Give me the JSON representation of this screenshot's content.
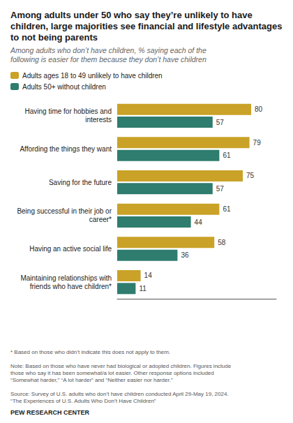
{
  "chart_data": {
    "type": "bar",
    "orientation": "horizontal",
    "title": "Among adults under 50 who say they’re unlikely to have children, large majorities see financial and lifestyle advantages to not being parents",
    "subtitle": "Among adults who don’t have children, % saying each of the following is easier for them because they don’t have children",
    "categories": [
      "Having time for hobbies and\ninterests",
      "Affording the things they want",
      "Saving for the future",
      "Being successful in their job or\ncareer*",
      "Having an active social life",
      "Maintaining relationships with\nfriends who have children*"
    ],
    "series": [
      {
        "name": "Adults ages 18 to 49 unlikely to have children",
        "color": "#C9A227",
        "values": [
          80,
          79,
          75,
          61,
          58,
          14
        ]
      },
      {
        "name": "Adults 50+ without children",
        "color": "#2E7D6E",
        "values": [
          57,
          61,
          57,
          44,
          36,
          11
        ]
      }
    ],
    "xlim": [
      0,
      95
    ],
    "tick_labels": "y",
    "grid": false,
    "legend": "upper left",
    "data_labels": true,
    "annotations": [
      "* Based on those who didn’t indicate this does not apply to them.",
      "Note: Based on those who have never had biological or adopted children. Figures include\nthose who say it has been somewhat/a lot easier. Other response options included\n“Somewhat harder,” “A lot harder” and “Neither easier nor harder.”",
      "Source: Survey of U.S. adults who don’t have children conducted April 29-May 19, 2024.\n“The Experiences of U.S. Adults Who Don’t Have Children”"
    ],
    "source": "PEW RESEARCH CENTER"
  }
}
